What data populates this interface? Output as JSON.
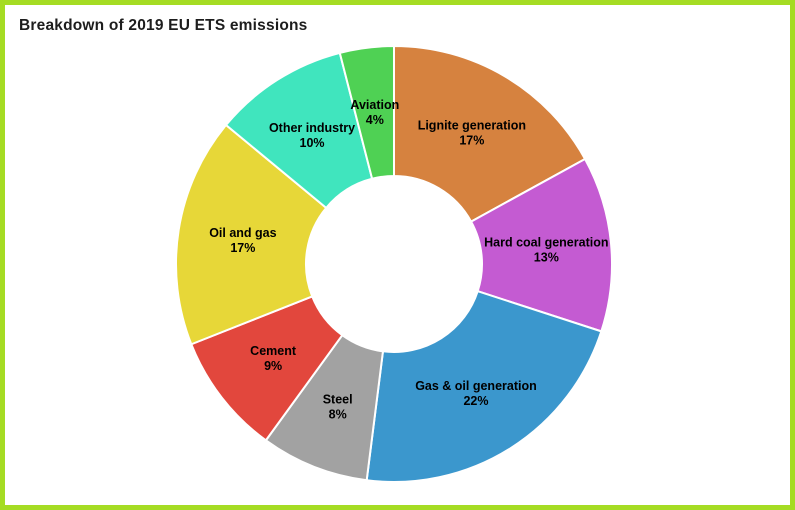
{
  "title": "Breakdown of 2019 EU ETS emissions",
  "frame": {
    "border_color": "#a5dc23",
    "background_color": "#ffffff",
    "title_color": "#1d1d1d"
  },
  "chart_data": {
    "type": "pie",
    "subtype": "donut",
    "title": "Breakdown of 2019 EU ETS emissions",
    "start_angle_deg": 0,
    "direction": "clockwise",
    "inner_radius_ratio": 0.4,
    "stroke_color": "#ffffff",
    "label_color": "#000000",
    "label_format": "{label}\n{value}%",
    "legend": "none",
    "slices": [
      {
        "label": "Lignite generation",
        "value": 17,
        "color": "#d6823f"
      },
      {
        "label": "Hard coal generation",
        "value": 13,
        "color": "#c45bd2"
      },
      {
        "label": "Gas & oil generation",
        "value": 22,
        "color": "#3b97cd"
      },
      {
        "label": "Steel",
        "value": 8,
        "color": "#a2a2a2"
      },
      {
        "label": "Cement",
        "value": 9,
        "color": "#e2473d"
      },
      {
        "label": "Oil and gas",
        "value": 17,
        "color": "#e7d738"
      },
      {
        "label": "Other industry",
        "value": 10,
        "color": "#40e5be"
      },
      {
        "label": "Aviation",
        "value": 4,
        "color": "#4fd154"
      }
    ]
  }
}
